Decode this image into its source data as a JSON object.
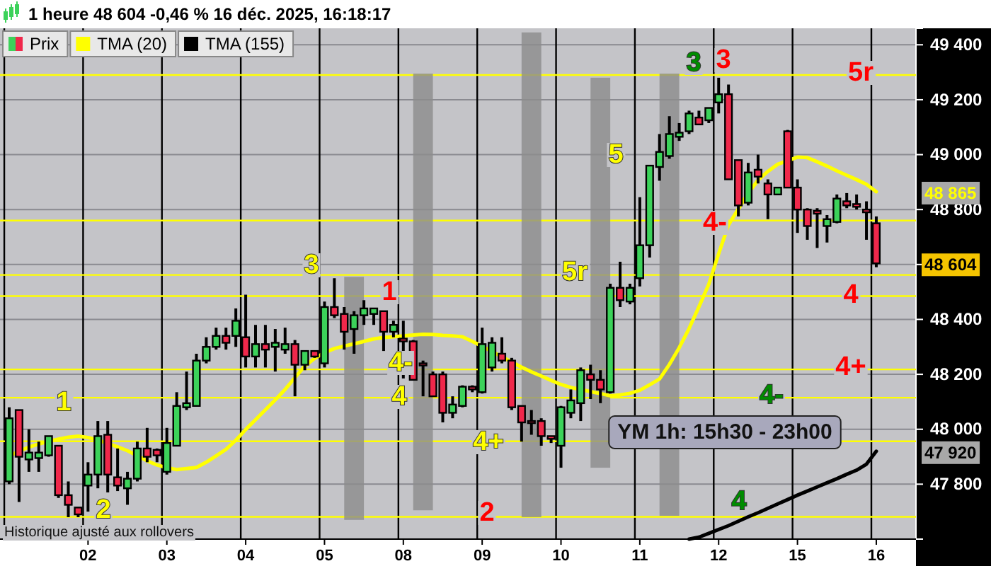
{
  "chart_data": {
    "type": "candlestick",
    "title": "1 heure 48 604 -0,46 % 16 déc. 2025, 16:18:17",
    "categories": [
      null,
      null,
      null,
      null,
      null,
      null,
      null,
      null,
      "02",
      null,
      null,
      null,
      null,
      null,
      null,
      null,
      "03",
      null,
      null,
      null,
      null,
      null,
      null,
      null,
      "04",
      null,
      null,
      null,
      null,
      null,
      null,
      null,
      "05",
      null,
      null,
      null,
      null,
      null,
      null,
      null,
      "08",
      null,
      null,
      null,
      null,
      null,
      null,
      null,
      "09",
      null,
      null,
      null,
      null,
      null,
      null,
      null,
      "10",
      null,
      null,
      null,
      null,
      null,
      null,
      null,
      "11",
      null,
      null,
      null,
      null,
      null,
      null,
      null,
      "12",
      null,
      null,
      null,
      null,
      null,
      null,
      null,
      "15",
      null,
      null,
      null,
      null,
      null,
      null,
      null,
      "16"
    ],
    "ylim": [
      47600,
      49460
    ],
    "yticks": [
      {
        "value": 47800,
        "label": "47 800"
      },
      {
        "value": 48000,
        "label": "48 000"
      },
      {
        "value": 48200,
        "label": "48 200"
      },
      {
        "value": 48400,
        "label": "48 400"
      },
      {
        "value": 48600,
        "label": null
      },
      {
        "value": 48800,
        "label": "48 800"
      },
      {
        "value": 49000,
        "label": "49 000"
      },
      {
        "value": 49200,
        "label": "49 200"
      },
      {
        "value": 49400,
        "label": "49 400"
      }
    ],
    "grid": true,
    "legend": "top left",
    "series": [
      {
        "type": "bar",
        "color": "#8c8c8c",
        "base": [
          null,
          null,
          null,
          null,
          null,
          null,
          null,
          null,
          null,
          null,
          null,
          null,
          null,
          null,
          null,
          null,
          null,
          null,
          null,
          null,
          null,
          null,
          null,
          null,
          null,
          null,
          null,
          null,
          null,
          null,
          null,
          null,
          null,
          null,
          null,
          47670,
          null,
          null,
          null,
          null,
          null,
          null,
          47705,
          null,
          null,
          null,
          null,
          null,
          null,
          null,
          null,
          null,
          null,
          47680,
          null,
          null,
          null,
          null,
          null,
          null,
          47860,
          null,
          null,
          null,
          null,
          null,
          null,
          47685,
          null,
          null,
          null,
          null,
          null,
          null,
          null,
          null,
          null,
          null,
          null,
          null,
          null,
          null,
          null,
          null,
          null,
          null,
          null,
          null,
          null
        ],
        "values": [
          null,
          null,
          null,
          null,
          null,
          null,
          null,
          null,
          null,
          null,
          null,
          null,
          null,
          null,
          null,
          null,
          null,
          null,
          null,
          null,
          null,
          null,
          null,
          null,
          null,
          null,
          null,
          null,
          null,
          null,
          null,
          null,
          null,
          null,
          null,
          885,
          null,
          null,
          null,
          null,
          null,
          null,
          1590,
          null,
          null,
          null,
          null,
          null,
          null,
          null,
          null,
          null,
          null,
          1765,
          null,
          null,
          null,
          null,
          null,
          null,
          1420,
          null,
          null,
          null,
          null,
          null,
          null,
          1610,
          null,
          null,
          null,
          null,
          null,
          null,
          null,
          null,
          null,
          null,
          null,
          null,
          null,
          null,
          null,
          null,
          null,
          null,
          null,
          null,
          null
        ]
      },
      {
        "name": "Prix",
        "colors": [
          "#3cd25a",
          "#f0284b",
          "#3cd25a",
          "#3cd25a",
          "#3cd25a",
          "#f0284b",
          "#f0284b",
          "#f0284b",
          "#3cd25a",
          "#3cd25a",
          "#f0284b",
          "#f0284b",
          "#3cd25a",
          "#3cd25a",
          "#f0284b",
          "#f0284b",
          "#3cd25a",
          "#3cd25a",
          "#3cd25a",
          "#3cd25a",
          "#3cd25a",
          "#3cd25a",
          "#f0284b",
          "#3cd25a",
          "#f0284b",
          "#3cd25a",
          "#f0284b",
          "#3cd25a",
          "#3cd25a",
          "#f0284b",
          "#3cd25a",
          "#f0284b",
          "#3cd25a",
          "#f0284b",
          "#f0284b",
          "#3cd25a",
          "#3cd25a",
          "#3cd25a",
          "#f0284b",
          "#3cd25a",
          "#f0284b",
          "#f0284b",
          "#f0284b",
          "#f0284b",
          "#f0284b",
          "#3cd25a",
          "#3cd25a",
          "#f0284b",
          "#3cd25a",
          "#3cd25a",
          "#f0284b",
          "#f0284b",
          "#f0284b",
          "#f0284b",
          "#f0284b",
          "#f0284b",
          "#3cd25a",
          "#3cd25a",
          "#3cd25a",
          "#f0284b",
          "#f0284b",
          "#3cd25a",
          "#f0284b",
          "#3cd25a",
          "#3cd25a",
          "#3cd25a",
          "#3cd25a",
          "#3cd25a",
          "#3cd25a",
          "#3cd25a",
          "#f0284b",
          "#3cd25a",
          "#3cd25a",
          "#f0284b",
          "#f0284b",
          "#3cd25a",
          "#f0284b",
          "#f0284b",
          "#3cd25a",
          "#f0284b",
          "#f0284b",
          "#f0284b",
          "#f0284b",
          "#3cd25a",
          "#3cd25a",
          "#f0284b",
          "#f0284b",
          "#f0284b",
          "#f0284b"
        ],
        "ohlc": [
          [
            47810,
            48080,
            47800,
            48040
          ],
          [
            48070,
            48070,
            47735,
            47900
          ],
          [
            47890,
            48000,
            47845,
            47915
          ],
          [
            47895,
            47955,
            47845,
            47915
          ],
          [
            47905,
            47975,
            47900,
            47975
          ],
          [
            47940,
            47940,
            47750,
            47760
          ],
          [
            47760,
            47810,
            47680,
            47725
          ],
          [
            47715,
            47715,
            47680,
            47690
          ],
          [
            47795,
            47880,
            47700,
            47835
          ],
          [
            47835,
            48030,
            47785,
            47975
          ],
          [
            47980,
            48030,
            47770,
            47835
          ],
          [
            47825,
            47930,
            47775,
            47795
          ],
          [
            47785,
            47845,
            47725,
            47820
          ],
          [
            47820,
            47955,
            47810,
            47930
          ],
          [
            47930,
            48005,
            47880,
            47900
          ],
          [
            47925,
            47930,
            47880,
            47905
          ],
          [
            47845,
            48005,
            47835,
            47950
          ],
          [
            47940,
            48135,
            47940,
            48085
          ],
          [
            48080,
            48210,
            48070,
            48095
          ],
          [
            48085,
            48275,
            48085,
            48250
          ],
          [
            48250,
            48335,
            48240,
            48300
          ],
          [
            48300,
            48370,
            48290,
            48340
          ],
          [
            48340,
            48370,
            48290,
            48315
          ],
          [
            48340,
            48440,
            48300,
            48395
          ],
          [
            48335,
            48490,
            48225,
            48265
          ],
          [
            48265,
            48380,
            48225,
            48310
          ],
          [
            48310,
            48380,
            48225,
            48290
          ],
          [
            48300,
            48365,
            48210,
            48315
          ],
          [
            48290,
            48370,
            48275,
            48310
          ],
          [
            48310,
            48325,
            48120,
            48235
          ],
          [
            48235,
            48285,
            48215,
            48285
          ],
          [
            48285,
            48285,
            48260,
            48265
          ],
          [
            48240,
            48465,
            48225,
            48445
          ],
          [
            48445,
            48550,
            48405,
            48415
          ],
          [
            48420,
            48445,
            48290,
            48355
          ],
          [
            48365,
            48430,
            48275,
            48415
          ],
          [
            48415,
            48470,
            48380,
            48440
          ],
          [
            48420,
            48440,
            48380,
            48440
          ],
          [
            48430,
            48430,
            48285,
            48355
          ],
          [
            48355,
            48395,
            48335,
            48380
          ],
          [
            48330,
            48395,
            48185,
            48320
          ],
          [
            48320,
            48325,
            48180,
            48180
          ],
          [
            48240,
            48250,
            48120,
            48235
          ],
          [
            48200,
            48210,
            48120,
            48120
          ],
          [
            48200,
            48210,
            48025,
            48060
          ],
          [
            48060,
            48120,
            48040,
            48090
          ],
          [
            48085,
            48160,
            48080,
            48155
          ],
          [
            48155,
            48160,
            48135,
            48145
          ],
          [
            48135,
            48370,
            48130,
            48310
          ],
          [
            48225,
            48335,
            48210,
            48315
          ],
          [
            48275,
            48335,
            48240,
            48250
          ],
          [
            48250,
            48260,
            48070,
            48080
          ],
          [
            48085,
            48085,
            47955,
            48025
          ],
          [
            48030,
            48070,
            47980,
            48025
          ],
          [
            48030,
            48040,
            47940,
            47975
          ],
          [
            47975,
            47975,
            47950,
            47965
          ],
          [
            47940,
            48085,
            47860,
            48080
          ],
          [
            48060,
            48145,
            48040,
            48105
          ],
          [
            48095,
            48225,
            48030,
            48215
          ],
          [
            48200,
            48235,
            48110,
            48180
          ],
          [
            48180,
            48215,
            48095,
            48145
          ],
          [
            48135,
            48530,
            48130,
            48515
          ],
          [
            48515,
            48610,
            48445,
            48470
          ],
          [
            48465,
            48530,
            48455,
            48515
          ],
          [
            48550,
            48845,
            48520,
            48670
          ],
          [
            48670,
            48960,
            48625,
            48960
          ],
          [
            48955,
            49075,
            48905,
            49010
          ],
          [
            48995,
            49140,
            48985,
            49075
          ],
          [
            49065,
            49115,
            49050,
            49080
          ],
          [
            49085,
            49160,
            49075,
            49150
          ],
          [
            49135,
            49160,
            49110,
            49110
          ],
          [
            49125,
            49170,
            49115,
            49170
          ],
          [
            49190,
            49280,
            49150,
            49220
          ],
          [
            49220,
            49255,
            48910,
            48910
          ],
          [
            48980,
            48980,
            48775,
            48815
          ],
          [
            48825,
            48970,
            48815,
            48935
          ],
          [
            48945,
            49000,
            48895,
            48920
          ],
          [
            48895,
            48910,
            48765,
            48855
          ],
          [
            48855,
            48880,
            48855,
            48880
          ],
          [
            49085,
            49090,
            48880,
            48880
          ],
          [
            48880,
            48910,
            48715,
            48800
          ],
          [
            48800,
            48805,
            48690,
            48740
          ],
          [
            48795,
            48805,
            48660,
            48785
          ],
          [
            48740,
            48780,
            48680,
            48765
          ],
          [
            48755,
            48855,
            48750,
            48840
          ],
          [
            48830,
            48860,
            48805,
            48815
          ],
          [
            48820,
            48855,
            48800,
            48810
          ],
          [
            48800,
            48830,
            48690,
            48790
          ],
          [
            48750,
            48775,
            48590,
            48604
          ]
        ],
        "value_labels": [
          null,
          null,
          null,
          null,
          null,
          null,
          null,
          null,
          null,
          null,
          null,
          null,
          null,
          null,
          null,
          null,
          null,
          null,
          null,
          null,
          null,
          null,
          null,
          null,
          null,
          null,
          null,
          null,
          null,
          null,
          null,
          null,
          null,
          null,
          null,
          null,
          null,
          null,
          null,
          null,
          null,
          null,
          null,
          null,
          null,
          null,
          null,
          null,
          null,
          null,
          null,
          null,
          null,
          null,
          null,
          null,
          null,
          null,
          null,
          null,
          null,
          null,
          null,
          null,
          null,
          null,
          null,
          null,
          null,
          null,
          null,
          null,
          null,
          null,
          null,
          null,
          null,
          null,
          null,
          null,
          null,
          null,
          null,
          null,
          null,
          null,
          null,
          null,
          "48 604"
        ]
      },
      {
        "name": "TMA (20)",
        "type": "line",
        "color": "#ffff00",
        "values": [
          47903,
          47920,
          47935,
          47946,
          47956,
          47964,
          47971,
          47975,
          47970,
          47961,
          47949,
          47936,
          47922,
          47904,
          47885,
          47870,
          47860,
          47853,
          47857,
          47861,
          47880,
          47903,
          47927,
          47960,
          47999,
          48035,
          48071,
          48107,
          48145,
          48188,
          48230,
          48258,
          48279,
          48294,
          48303,
          48311,
          48320,
          48329,
          48334,
          48337,
          48340,
          48343,
          48346,
          48345,
          48342,
          48340,
          48337,
          48320,
          48302,
          48283,
          48264,
          48245,
          48226,
          48209,
          48194,
          48178,
          48163,
          48152,
          48145,
          48137,
          48130,
          48122,
          48125,
          48131,
          48142,
          48162,
          48183,
          48236,
          48297,
          48367,
          48446,
          48528,
          48639,
          48744,
          48802,
          48860,
          48907,
          48939,
          48965,
          48978,
          48991,
          48989,
          48974,
          48958,
          48941,
          48925,
          48909,
          48892,
          48865
        ]
      },
      {
        "name": "TMA (155)",
        "type": "line",
        "color": "#000000",
        "values": [
          null,
          null,
          null,
          null,
          null,
          null,
          null,
          null,
          null,
          null,
          null,
          null,
          null,
          null,
          null,
          null,
          null,
          null,
          null,
          null,
          null,
          null,
          null,
          null,
          null,
          null,
          null,
          null,
          null,
          null,
          null,
          null,
          null,
          null,
          null,
          null,
          null,
          null,
          null,
          null,
          null,
          null,
          null,
          null,
          null,
          null,
          null,
          null,
          null,
          null,
          null,
          null,
          null,
          null,
          null,
          null,
          null,
          null,
          null,
          null,
          null,
          null,
          null,
          null,
          null,
          null,
          null,
          null,
          null,
          47600,
          47607,
          47621,
          47635,
          47649,
          47665,
          47681,
          47696,
          47712,
          47728,
          47744,
          47760,
          47775,
          47790,
          47805,
          47820,
          47836,
          47851,
          47873,
          47920
        ]
      }
    ],
    "ref_lines": [
      {
        "axis": "y",
        "value": 49290,
        "color": "#ffff00"
      },
      {
        "axis": "y",
        "value": 48760,
        "color": "#ffff00"
      },
      {
        "axis": "y",
        "value": 48562,
        "color": "#ffff00"
      },
      {
        "axis": "y",
        "value": 48485,
        "color": "#ffff00"
      },
      {
        "axis": "y",
        "value": 48218,
        "color": "#ffff00"
      },
      {
        "axis": "y",
        "value": 48115,
        "color": "#ffff00"
      },
      {
        "axis": "y",
        "value": 47956,
        "color": "#ffff00"
      },
      {
        "axis": "y",
        "value": 47681,
        "color": "#ffff00"
      }
    ],
    "annotations": [
      "1",
      "2",
      "3",
      "1",
      "4-",
      "4",
      "2",
      "4+",
      "5r",
      "5",
      "3",
      "3",
      "5r",
      "4-",
      "4",
      "4+",
      "4-",
      "4",
      "YM 1h: 15h30 - 23h00",
      "Historique ajusté aux rollovers",
      "48 865",
      "47 920"
    ]
  }
}
